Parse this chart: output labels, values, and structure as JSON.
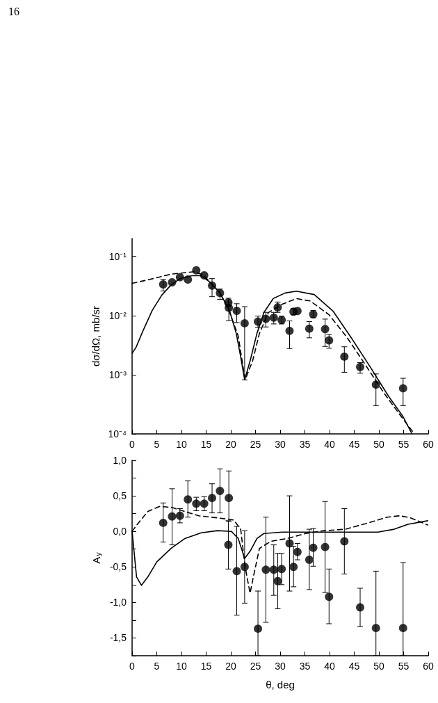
{
  "chart_data": [
    {
      "type": "scatter",
      "ylabel": "dσ/dΩ, mb/sr",
      "log": "y",
      "xlim": [
        0,
        60
      ],
      "xticks": [
        0,
        5,
        10,
        15,
        20,
        25,
        30,
        35,
        40,
        45,
        50,
        55,
        60
      ],
      "ylim": [
        0.0001,
        0.2
      ],
      "yticks": [
        {
          "value": 0.0001,
          "label": "10⁻⁴"
        },
        {
          "value": 0.001,
          "label": "10⁻³"
        },
        {
          "value": 0.01,
          "label": "10⁻²"
        },
        {
          "value": 0.1,
          "label": "10⁻¹"
        }
      ],
      "grid": false,
      "annotations": [
        "16"
      ],
      "series": [
        {
          "type": "scatter",
          "color": "#000000",
          "marker": "circle",
          "x": [
            6.3,
            8.1,
            9.7,
            11.3,
            13.0,
            14.6,
            16.2,
            17.8,
            19.5,
            19.6,
            21.2,
            22.8,
            25.5,
            27.1,
            28.7,
            29.5,
            30.3,
            31.9,
            32.7,
            33.5,
            35.9,
            36.7,
            39.1,
            39.9,
            43.0,
            46.2,
            49.4,
            54.9
          ],
          "values": [
            0.0335,
            0.0364,
            0.0444,
            0.0405,
            0.058,
            0.0477,
            0.032,
            0.024,
            0.0166,
            0.0135,
            0.012,
            0.0074,
            0.0079,
            0.0088,
            0.0092,
            0.0137,
            0.0084,
            0.0055,
            0.0116,
            0.0119,
            0.006,
            0.0105,
            0.0059,
            0.0038,
            0.00202,
            0.00135,
            0.00068,
            0.00059
          ],
          "errors": [
            [
              0.026,
              0.041
            ],
            null,
            null,
            null,
            null,
            null,
            [
              0.0208,
              0.042
            ],
            [
              0.0187,
              0.028
            ],
            [
              0.0143,
              0.0196
            ],
            [
              0.0082,
              0.0169
            ],
            [
              0.0076,
              0.0158
            ],
            [
              0.00082,
              0.0141
            ],
            [
              0.0063,
              0.0098
            ],
            [
              0.0064,
              0.0113
            ],
            [
              0.0072,
              0.0113
            ],
            [
              0.0113,
              0.0169
            ],
            [
              0.0072,
              0.0098
            ],
            [
              0.00277,
              0.0081
            ],
            [
              0.0103,
              0.0131
            ],
            null,
            [
              0.0042,
              0.0079
            ],
            [
              0.0092,
              0.0122
            ],
            [
              0.003,
              0.0087
            ],
            [
              0.0028,
              0.0048
            ],
            [
              0.0011,
              0.00296
            ],
            [
              0.00106,
              0.0016
            ],
            [
              0.0003,
              0.00103
            ],
            [
              0.0003,
              0.00087
            ]
          ]
        },
        {
          "type": "line",
          "color": "#000000",
          "marker": "none",
          "line_style": "solid",
          "x": [
            0,
            0.8,
            2.2,
            4.1,
            6.0,
            7.9,
            9.7,
            12.1,
            14.0,
            15.9,
            17.8,
            19.7,
            21.1,
            22.0,
            22.8,
            23.9,
            25.3,
            26.7,
            28.6,
            31.0,
            33.3,
            36.9,
            40.7,
            44.4,
            48.1,
            51.9,
            54.9,
            56.7
          ],
          "values": [
            0.0023,
            0.0029,
            0.0055,
            0.0123,
            0.022,
            0.033,
            0.042,
            0.047,
            0.047,
            0.036,
            0.024,
            0.0123,
            0.005,
            0.002,
            0.00082,
            0.0017,
            0.005,
            0.0112,
            0.0194,
            0.024,
            0.0258,
            0.0226,
            0.0119,
            0.0042,
            0.00141,
            0.00044,
            0.000195,
            0.0001
          ]
        },
        {
          "type": "line",
          "color": "#000000",
          "marker": "none",
          "line_style": "dashed",
          "x": [
            0,
            3.2,
            7.9,
            12.6,
            14.5,
            17.8,
            19.7,
            21.5,
            22.9,
            24.4,
            25.8,
            27.6,
            30.4,
            33.3,
            36.1,
            39.9,
            43.6,
            47.4,
            51.1,
            54.9,
            57.2
          ],
          "values": [
            0.035,
            0.04,
            0.05,
            0.055,
            0.048,
            0.024,
            0.0118,
            0.0045,
            0.00082,
            0.0017,
            0.005,
            0.0112,
            0.0155,
            0.0193,
            0.0176,
            0.0103,
            0.0042,
            0.00141,
            0.00048,
            0.000178,
            0.0001
          ]
        }
      ]
    },
    {
      "type": "scatter",
      "xlabel": "θ, deg",
      "ylabel": "A$_{y}$",
      "xlim": [
        0,
        60
      ],
      "xticks": [
        0,
        5,
        10,
        15,
        20,
        25,
        30,
        35,
        40,
        45,
        50,
        55,
        60
      ],
      "ylim": [
        -1.75,
        1.0
      ],
      "yticks": [
        {
          "value": -1.75,
          "label": null
        },
        {
          "value": -1.5,
          "label": "-1,5"
        },
        {
          "value": -1.25,
          "label": null
        },
        {
          "value": -1.0,
          "label": "-1,0"
        },
        {
          "value": -0.75,
          "label": null
        },
        {
          "value": -0.5,
          "label": "-0,5"
        },
        {
          "value": -0.25,
          "label": null
        },
        {
          "value": 0,
          "label": "0,0"
        },
        {
          "value": 0.25,
          "label": null
        },
        {
          "value": 0.5,
          "label": "0,5"
        },
        {
          "value": 0.75,
          "label": null
        },
        {
          "value": 1.0,
          "label": "1,0"
        }
      ],
      "grid": false,
      "series": [
        {
          "type": "scatter",
          "color": "#000000",
          "marker": "circle",
          "x": [
            6.3,
            8.1,
            9.7,
            11.3,
            13.0,
            14.6,
            16.2,
            17.8,
            19.6,
            19.5,
            21.2,
            22.8,
            25.5,
            27.1,
            28.7,
            29.5,
            30.3,
            31.9,
            32.7,
            33.5,
            35.9,
            36.7,
            39.1,
            39.9,
            43.0,
            46.2,
            49.4,
            54.9
          ],
          "values": [
            0.12,
            0.21,
            0.22,
            0.45,
            0.39,
            0.39,
            0.47,
            0.57,
            0.47,
            -0.19,
            -0.56,
            -0.5,
            -1.37,
            -0.54,
            -0.54,
            -0.7,
            -0.53,
            -0.17,
            -0.5,
            -0.29,
            -0.4,
            -0.23,
            -0.22,
            -0.92,
            -0.14,
            -1.07,
            -1.36,
            -1.36
          ],
          "errors": [
            [
              -0.15,
              0.4
            ],
            [
              -0.19,
              0.6
            ],
            [
              0.12,
              0.32
            ],
            [
              0.2,
              0.71
            ],
            [
              0.29,
              0.48
            ],
            [
              0.29,
              0.49
            ],
            [
              0.26,
              0.67
            ],
            [
              0.26,
              0.88
            ],
            [
              0.14,
              0.85
            ],
            [
              -0.53,
              0.15
            ],
            [
              -1.18,
              0.07
            ],
            [
              -1.01,
              0.01
            ],
            [
              -1.75,
              -0.84
            ],
            [
              -1.28,
              0.2
            ],
            [
              -0.9,
              -0.19
            ],
            [
              -1.09,
              -0.31
            ],
            [
              -0.75,
              -0.31
            ],
            [
              -0.84,
              0.5
            ],
            [
              -0.78,
              -0.21
            ],
            [
              -0.4,
              -0.17
            ],
            [
              -0.82,
              0.03
            ],
            [
              -0.49,
              0.04
            ],
            [
              -0.86,
              0.42
            ],
            [
              -1.3,
              -0.53
            ],
            [
              -0.6,
              0.32
            ],
            [
              -1.34,
              -0.8
            ],
            [
              -1.75,
              -0.56
            ],
            [
              -1.75,
              -0.44
            ]
          ]
        },
        {
          "type": "line",
          "color": "#000000",
          "marker": "none",
          "line_style": "solid",
          "x": [
            0,
            0.9,
            1.9,
            3.2,
            5.0,
            7.9,
            10.7,
            14.0,
            17.3,
            20.1,
            21.5,
            22.8,
            23.9,
            25.3,
            26.7,
            30.4,
            36.1,
            49.8,
            53.1,
            55.9,
            59.9
          ],
          "values": [
            0,
            -0.64,
            -0.76,
            -0.64,
            -0.43,
            -0.24,
            -0.1,
            -0.02,
            0.01,
            0,
            -0.1,
            -0.38,
            -0.28,
            -0.1,
            -0.03,
            -0.01,
            -0.01,
            -0.01,
            0.03,
            0.1,
            0.15
          ]
        },
        {
          "type": "line",
          "color": "#000000",
          "marker": "none",
          "line_style": "dashed",
          "x": [
            0,
            1.3,
            3.2,
            5.5,
            7.9,
            10.7,
            13.5,
            17.3,
            20.6,
            22.0,
            22.9,
            23.9,
            24.6,
            25.8,
            28.1,
            31.4,
            35.2,
            38.9,
            43.2,
            47.9,
            51.7,
            54.3,
            56.4,
            59.9
          ],
          "values": [
            0,
            0.12,
            0.28,
            0.35,
            0.34,
            0.28,
            0.22,
            0.19,
            0.16,
            0.03,
            -0.5,
            -0.87,
            -0.63,
            -0.24,
            -0.14,
            -0.1,
            -0.03,
            0.01,
            0.03,
            0.12,
            0.2,
            0.22,
            0.19,
            0.09
          ]
        }
      ]
    }
  ]
}
